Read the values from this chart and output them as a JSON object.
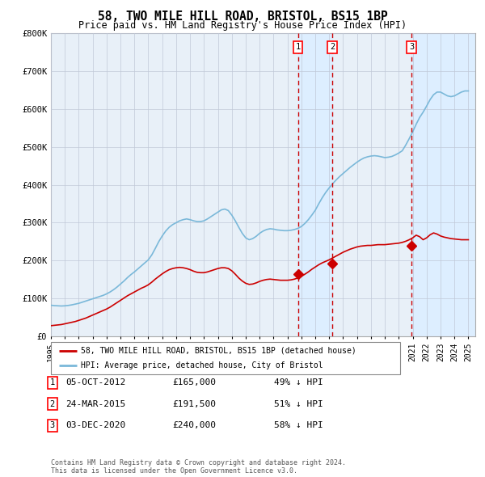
{
  "title": "58, TWO MILE HILL ROAD, BRISTOL, BS15 1BP",
  "subtitle": "Price paid vs. HM Land Registry's House Price Index (HPI)",
  "xlim": [
    1995.0,
    2025.5
  ],
  "ylim": [
    0,
    800000
  ],
  "yticks": [
    0,
    100000,
    200000,
    300000,
    400000,
    500000,
    600000,
    700000,
    800000
  ],
  "ytick_labels": [
    "£0",
    "£100K",
    "£200K",
    "£300K",
    "£400K",
    "£500K",
    "£600K",
    "£700K",
    "£800K"
  ],
  "xtick_years": [
    1995,
    1996,
    1997,
    1998,
    1999,
    2000,
    2001,
    2002,
    2003,
    2004,
    2005,
    2006,
    2007,
    2008,
    2009,
    2010,
    2011,
    2012,
    2013,
    2014,
    2015,
    2016,
    2017,
    2018,
    2019,
    2020,
    2021,
    2022,
    2023,
    2024,
    2025
  ],
  "hpi_color": "#7ab8d9",
  "sold_color": "#cc0000",
  "vline_color": "#cc0000",
  "shade_color": "#ddeeff",
  "bg_color": "#e8f0f8",
  "grid_color": "#c0c8d8",
  "sold_label": "58, TWO MILE HILL ROAD, BRISTOL, BS15 1BP (detached house)",
  "hpi_label": "HPI: Average price, detached house, City of Bristol",
  "transactions": [
    {
      "num": 1,
      "date": "05-OCT-2012",
      "x": 2012.76,
      "price": 165000,
      "pct": "49%",
      "dir": "↓"
    },
    {
      "num": 2,
      "date": "24-MAR-2015",
      "x": 2015.23,
      "price": 191500,
      "pct": "51%",
      "dir": "↓"
    },
    {
      "num": 3,
      "date": "03-DEC-2020",
      "x": 2020.92,
      "price": 240000,
      "pct": "58%",
      "dir": "↓"
    }
  ],
  "footer": "Contains HM Land Registry data © Crown copyright and database right 2024.\nThis data is licensed under the Open Government Licence v3.0.",
  "hpi_data": [
    [
      1995.0,
      82000
    ],
    [
      1995.25,
      81000
    ],
    [
      1995.5,
      80500
    ],
    [
      1995.75,
      80000
    ],
    [
      1996.0,
      80500
    ],
    [
      1996.25,
      81500
    ],
    [
      1996.5,
      83000
    ],
    [
      1996.75,
      85000
    ],
    [
      1997.0,
      87000
    ],
    [
      1997.25,
      90000
    ],
    [
      1997.5,
      93000
    ],
    [
      1997.75,
      96000
    ],
    [
      1998.0,
      99000
    ],
    [
      1998.25,
      102000
    ],
    [
      1998.5,
      105000
    ],
    [
      1998.75,
      108000
    ],
    [
      1999.0,
      112000
    ],
    [
      1999.25,
      117000
    ],
    [
      1999.5,
      123000
    ],
    [
      1999.75,
      130000
    ],
    [
      2000.0,
      138000
    ],
    [
      2000.25,
      146000
    ],
    [
      2000.5,
      155000
    ],
    [
      2000.75,
      163000
    ],
    [
      2001.0,
      170000
    ],
    [
      2001.25,
      178000
    ],
    [
      2001.5,
      186000
    ],
    [
      2001.75,
      194000
    ],
    [
      2002.0,
      202000
    ],
    [
      2002.25,
      215000
    ],
    [
      2002.5,
      232000
    ],
    [
      2002.75,
      250000
    ],
    [
      2003.0,
      265000
    ],
    [
      2003.25,
      278000
    ],
    [
      2003.5,
      288000
    ],
    [
      2003.75,
      295000
    ],
    [
      2004.0,
      300000
    ],
    [
      2004.25,
      305000
    ],
    [
      2004.5,
      308000
    ],
    [
      2004.75,
      310000
    ],
    [
      2005.0,
      308000
    ],
    [
      2005.25,
      305000
    ],
    [
      2005.5,
      303000
    ],
    [
      2005.75,
      303000
    ],
    [
      2006.0,
      305000
    ],
    [
      2006.25,
      310000
    ],
    [
      2006.5,
      316000
    ],
    [
      2006.75,
      322000
    ],
    [
      2007.0,
      328000
    ],
    [
      2007.25,
      334000
    ],
    [
      2007.5,
      336000
    ],
    [
      2007.75,
      332000
    ],
    [
      2008.0,
      320000
    ],
    [
      2008.25,
      305000
    ],
    [
      2008.5,
      288000
    ],
    [
      2008.75,
      272000
    ],
    [
      2009.0,
      260000
    ],
    [
      2009.25,
      255000
    ],
    [
      2009.5,
      258000
    ],
    [
      2009.75,
      264000
    ],
    [
      2010.0,
      272000
    ],
    [
      2010.25,
      278000
    ],
    [
      2010.5,
      282000
    ],
    [
      2010.75,
      284000
    ],
    [
      2011.0,
      283000
    ],
    [
      2011.25,
      281000
    ],
    [
      2011.5,
      280000
    ],
    [
      2011.75,
      279000
    ],
    [
      2012.0,
      279000
    ],
    [
      2012.25,
      280000
    ],
    [
      2012.5,
      282000
    ],
    [
      2012.75,
      285000
    ],
    [
      2013.0,
      290000
    ],
    [
      2013.25,
      298000
    ],
    [
      2013.5,
      308000
    ],
    [
      2013.75,
      320000
    ],
    [
      2014.0,
      333000
    ],
    [
      2014.25,
      350000
    ],
    [
      2014.5,
      366000
    ],
    [
      2014.75,
      380000
    ],
    [
      2015.0,
      392000
    ],
    [
      2015.25,
      403000
    ],
    [
      2015.5,
      413000
    ],
    [
      2015.75,
      422000
    ],
    [
      2016.0,
      430000
    ],
    [
      2016.25,
      438000
    ],
    [
      2016.5,
      446000
    ],
    [
      2016.75,
      453000
    ],
    [
      2017.0,
      460000
    ],
    [
      2017.25,
      466000
    ],
    [
      2017.5,
      471000
    ],
    [
      2017.75,
      474000
    ],
    [
      2018.0,
      476000
    ],
    [
      2018.25,
      477000
    ],
    [
      2018.5,
      476000
    ],
    [
      2018.75,
      474000
    ],
    [
      2019.0,
      472000
    ],
    [
      2019.25,
      473000
    ],
    [
      2019.5,
      475000
    ],
    [
      2019.75,
      479000
    ],
    [
      2020.0,
      484000
    ],
    [
      2020.25,
      490000
    ],
    [
      2020.5,
      505000
    ],
    [
      2020.75,
      522000
    ],
    [
      2021.0,
      540000
    ],
    [
      2021.25,
      560000
    ],
    [
      2021.5,
      578000
    ],
    [
      2021.75,
      592000
    ],
    [
      2022.0,
      608000
    ],
    [
      2022.25,
      625000
    ],
    [
      2022.5,
      638000
    ],
    [
      2022.75,
      645000
    ],
    [
      2023.0,
      645000
    ],
    [
      2023.25,
      640000
    ],
    [
      2023.5,
      635000
    ],
    [
      2023.75,
      633000
    ],
    [
      2024.0,
      635000
    ],
    [
      2024.25,
      640000
    ],
    [
      2024.5,
      645000
    ],
    [
      2024.75,
      648000
    ],
    [
      2025.0,
      648000
    ]
  ],
  "sold_data": [
    [
      1995.0,
      28000
    ],
    [
      1995.25,
      29000
    ],
    [
      1995.5,
      30000
    ],
    [
      1995.75,
      31000
    ],
    [
      1996.0,
      33000
    ],
    [
      1996.25,
      35000
    ],
    [
      1996.5,
      37000
    ],
    [
      1996.75,
      39000
    ],
    [
      1997.0,
      42000
    ],
    [
      1997.25,
      45000
    ],
    [
      1997.5,
      48000
    ],
    [
      1997.75,
      52000
    ],
    [
      1998.0,
      56000
    ],
    [
      1998.25,
      60000
    ],
    [
      1998.5,
      64000
    ],
    [
      1998.75,
      68000
    ],
    [
      1999.0,
      72000
    ],
    [
      1999.25,
      77000
    ],
    [
      1999.5,
      83000
    ],
    [
      1999.75,
      89000
    ],
    [
      2000.0,
      95000
    ],
    [
      2000.25,
      101000
    ],
    [
      2000.5,
      107000
    ],
    [
      2000.75,
      112000
    ],
    [
      2001.0,
      117000
    ],
    [
      2001.25,
      122000
    ],
    [
      2001.5,
      127000
    ],
    [
      2001.75,
      131000
    ],
    [
      2002.0,
      136000
    ],
    [
      2002.25,
      143000
    ],
    [
      2002.5,
      151000
    ],
    [
      2002.75,
      158000
    ],
    [
      2003.0,
      165000
    ],
    [
      2003.25,
      171000
    ],
    [
      2003.5,
      176000
    ],
    [
      2003.75,
      179000
    ],
    [
      2004.0,
      181000
    ],
    [
      2004.25,
      182000
    ],
    [
      2004.5,
      181000
    ],
    [
      2004.75,
      179000
    ],
    [
      2005.0,
      176000
    ],
    [
      2005.25,
      172000
    ],
    [
      2005.5,
      169000
    ],
    [
      2005.75,
      168000
    ],
    [
      2006.0,
      168000
    ],
    [
      2006.25,
      170000
    ],
    [
      2006.5,
      173000
    ],
    [
      2006.75,
      176000
    ],
    [
      2007.0,
      179000
    ],
    [
      2007.25,
      181000
    ],
    [
      2007.5,
      181000
    ],
    [
      2007.75,
      179000
    ],
    [
      2008.0,
      173000
    ],
    [
      2008.25,
      164000
    ],
    [
      2008.5,
      154000
    ],
    [
      2008.75,
      146000
    ],
    [
      2009.0,
      140000
    ],
    [
      2009.25,
      137000
    ],
    [
      2009.5,
      138000
    ],
    [
      2009.75,
      141000
    ],
    [
      2010.0,
      145000
    ],
    [
      2010.25,
      148000
    ],
    [
      2010.5,
      150000
    ],
    [
      2010.75,
      151000
    ],
    [
      2011.0,
      150000
    ],
    [
      2011.25,
      149000
    ],
    [
      2011.5,
      148000
    ],
    [
      2011.75,
      148000
    ],
    [
      2012.0,
      148000
    ],
    [
      2012.25,
      149000
    ],
    [
      2012.5,
      151000
    ],
    [
      2012.75,
      154000
    ],
    [
      2013.0,
      158000
    ],
    [
      2013.25,
      164000
    ],
    [
      2013.5,
      170000
    ],
    [
      2013.75,
      177000
    ],
    [
      2014.0,
      183000
    ],
    [
      2014.25,
      189000
    ],
    [
      2014.5,
      194000
    ],
    [
      2014.75,
      198000
    ],
    [
      2015.0,
      202000
    ],
    [
      2015.25,
      207000
    ],
    [
      2015.5,
      212000
    ],
    [
      2015.75,
      217000
    ],
    [
      2016.0,
      222000
    ],
    [
      2016.25,
      226000
    ],
    [
      2016.5,
      230000
    ],
    [
      2016.75,
      233000
    ],
    [
      2017.0,
      236000
    ],
    [
      2017.25,
      238000
    ],
    [
      2017.5,
      239000
    ],
    [
      2017.75,
      240000
    ],
    [
      2018.0,
      240000
    ],
    [
      2018.25,
      241000
    ],
    [
      2018.5,
      242000
    ],
    [
      2018.75,
      242000
    ],
    [
      2019.0,
      242000
    ],
    [
      2019.25,
      243000
    ],
    [
      2019.5,
      244000
    ],
    [
      2019.75,
      245000
    ],
    [
      2020.0,
      246000
    ],
    [
      2020.25,
      248000
    ],
    [
      2020.5,
      251000
    ],
    [
      2020.75,
      255000
    ],
    [
      2021.0,
      260000
    ],
    [
      2021.25,
      267000
    ],
    [
      2021.5,
      263000
    ],
    [
      2021.75,
      255000
    ],
    [
      2022.0,
      260000
    ],
    [
      2022.25,
      268000
    ],
    [
      2022.5,
      273000
    ],
    [
      2022.75,
      270000
    ],
    [
      2023.0,
      265000
    ],
    [
      2023.25,
      262000
    ],
    [
      2023.5,
      260000
    ],
    [
      2023.75,
      258000
    ],
    [
      2024.0,
      257000
    ],
    [
      2024.25,
      256000
    ],
    [
      2024.5,
      255000
    ],
    [
      2024.75,
      255000
    ],
    [
      2025.0,
      255000
    ]
  ]
}
